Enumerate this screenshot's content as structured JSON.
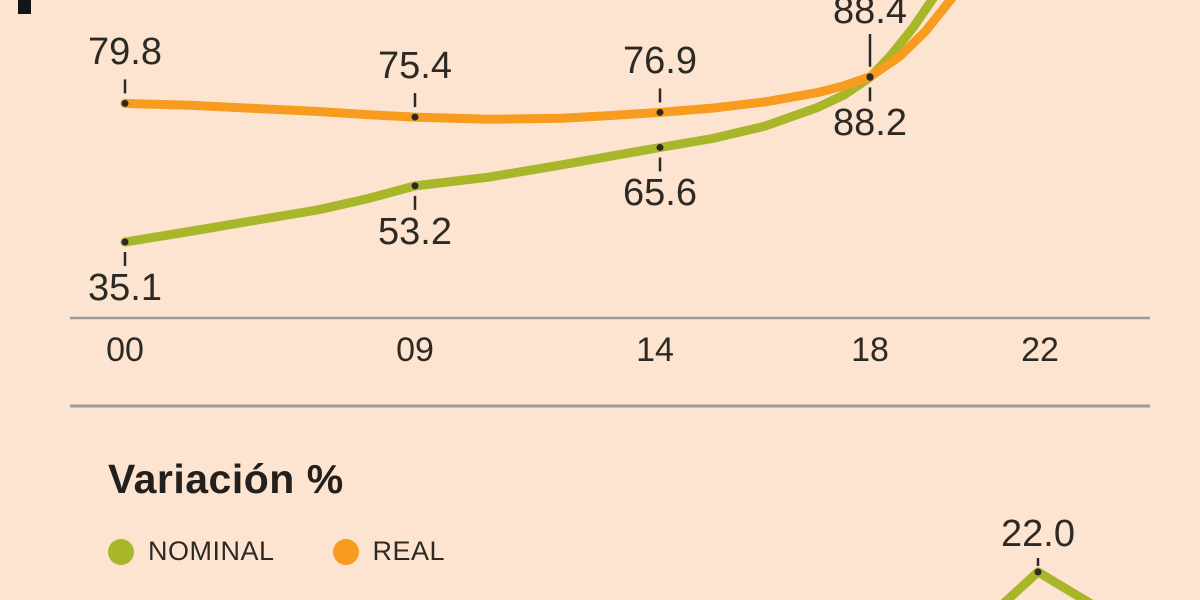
{
  "colors": {
    "background": "#fce4d0",
    "nominal": "#a8b62a",
    "real": "#f79c1e",
    "text": "#2d2a26",
    "axis": "#9b9b9b"
  },
  "section": {
    "title": "Variación %"
  },
  "legend": [
    {
      "label": "NOMINAL",
      "color_key": "nominal"
    },
    {
      "label": "REAL",
      "color_key": "real"
    }
  ],
  "chart_data": [
    {
      "type": "line",
      "title": "",
      "x_tick_labels": [
        "00",
        "09",
        "14",
        "18",
        "22"
      ],
      "x_tick_years": [
        0,
        9,
        14,
        18,
        22
      ],
      "legend_position": "below",
      "series": [
        {
          "name": "NOMINAL",
          "color_key": "nominal",
          "points": [
            {
              "year": 0,
              "value": 35.1,
              "label": "35.1",
              "label_side": "below"
            },
            {
              "year": 2,
              "value": 38.5
            },
            {
              "year": 4,
              "value": 42.0
            },
            {
              "year": 6,
              "value": 45.5
            },
            {
              "year": 7.5,
              "value": 49.0
            },
            {
              "year": 9,
              "value": 53.2,
              "label": "53.2",
              "label_side": "below"
            },
            {
              "year": 10.5,
              "value": 56.0
            },
            {
              "year": 12,
              "value": 60.0
            },
            {
              "year": 14,
              "value": 65.6,
              "label": "65.6",
              "label_side": "below"
            },
            {
              "year": 15,
              "value": 68.5
            },
            {
              "year": 16,
              "value": 72.5
            },
            {
              "year": 17,
              "value": 78.5
            },
            {
              "year": 17.5,
              "value": 82.5
            },
            {
              "year": 18,
              "value": 88.2,
              "label": "88.2",
              "label_side": "below"
            },
            {
              "year": 18.5,
              "value": 95.5
            },
            {
              "year": 19,
              "value": 104.0
            },
            {
              "year": 19.5,
              "value": 114.0
            },
            {
              "year": 19.9,
              "value": 124.0
            }
          ]
        },
        {
          "name": "REAL",
          "color_key": "real",
          "points": [
            {
              "year": 0,
              "value": 79.8,
              "label": "79.8",
              "label_side": "above"
            },
            {
              "year": 2,
              "value": 79.2
            },
            {
              "year": 4,
              "value": 78.2
            },
            {
              "year": 6,
              "value": 77.2
            },
            {
              "year": 7.5,
              "value": 76.2
            },
            {
              "year": 9,
              "value": 75.4,
              "label": "75.4",
              "label_side": "above"
            },
            {
              "year": 10.5,
              "value": 74.7
            },
            {
              "year": 12,
              "value": 75.0
            },
            {
              "year": 13,
              "value": 75.9
            },
            {
              "year": 14,
              "value": 76.9,
              "label": "76.9",
              "label_side": "above"
            },
            {
              "year": 15,
              "value": 78.3
            },
            {
              "year": 16,
              "value": 80.3
            },
            {
              "year": 17,
              "value": 83.3
            },
            {
              "year": 17.5,
              "value": 85.5
            },
            {
              "year": 18,
              "value": 88.4,
              "label": "88.4",
              "label_side": "above_far"
            },
            {
              "year": 18.7,
              "value": 95.0
            },
            {
              "year": 19.3,
              "value": 103.0
            },
            {
              "year": 20,
              "value": 115.0
            },
            {
              "year": 20.5,
              "value": 125.0
            }
          ]
        }
      ]
    },
    {
      "type": "line",
      "title": "Variación %",
      "note": "partially visible at bottom of image",
      "series": [
        {
          "name": "NOMINAL",
          "color_key": "nominal",
          "visible_points": [
            {
              "value": 22.0,
              "label": "22.0"
            }
          ]
        }
      ]
    }
  ]
}
